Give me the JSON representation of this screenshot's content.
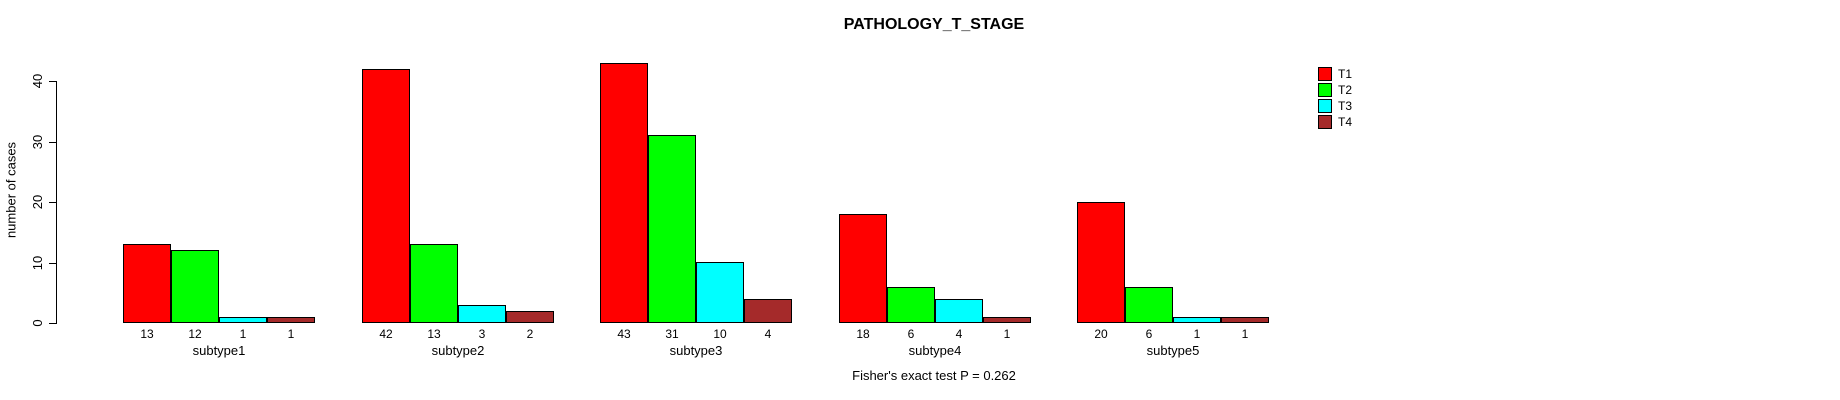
{
  "title": "PATHOLOGY_T_STAGE",
  "footer_note": "Fisher's exact test P = 0.262",
  "chart_data": {
    "type": "bar",
    "title": "PATHOLOGY_T_STAGE",
    "xlabel": "",
    "ylabel": "number of cases",
    "categories": [
      "subtype1",
      "subtype2",
      "subtype3",
      "subtype4",
      "subtype5"
    ],
    "series": [
      {
        "name": "T1",
        "color": "#ff0000",
        "values": [
          13,
          42,
          43,
          18,
          20
        ]
      },
      {
        "name": "T2",
        "color": "#00ff00",
        "values": [
          12,
          13,
          31,
          6,
          6
        ]
      },
      {
        "name": "T3",
        "color": "#00ffff",
        "values": [
          1,
          3,
          10,
          4,
          1
        ]
      },
      {
        "name": "T4",
        "color": "#a52a2a",
        "values": [
          1,
          2,
          4,
          1,
          1
        ]
      }
    ],
    "bar_value_labels": [
      [
        13,
        12,
        1,
        1
      ],
      [
        42,
        13,
        3,
        2
      ],
      [
        43,
        31,
        10,
        4
      ],
      [
        18,
        6,
        4,
        1
      ],
      [
        20,
        6,
        1,
        1
      ]
    ],
    "yticks": [
      0,
      10,
      20,
      30,
      40
    ],
    "ylim": [
      0,
      44
    ],
    "grid": false,
    "legend_position": "top-right",
    "legend_entries": [
      "T1",
      "T2",
      "T3",
      "T4"
    ],
    "annotation": "Fisher's exact test P = 0.262"
  }
}
